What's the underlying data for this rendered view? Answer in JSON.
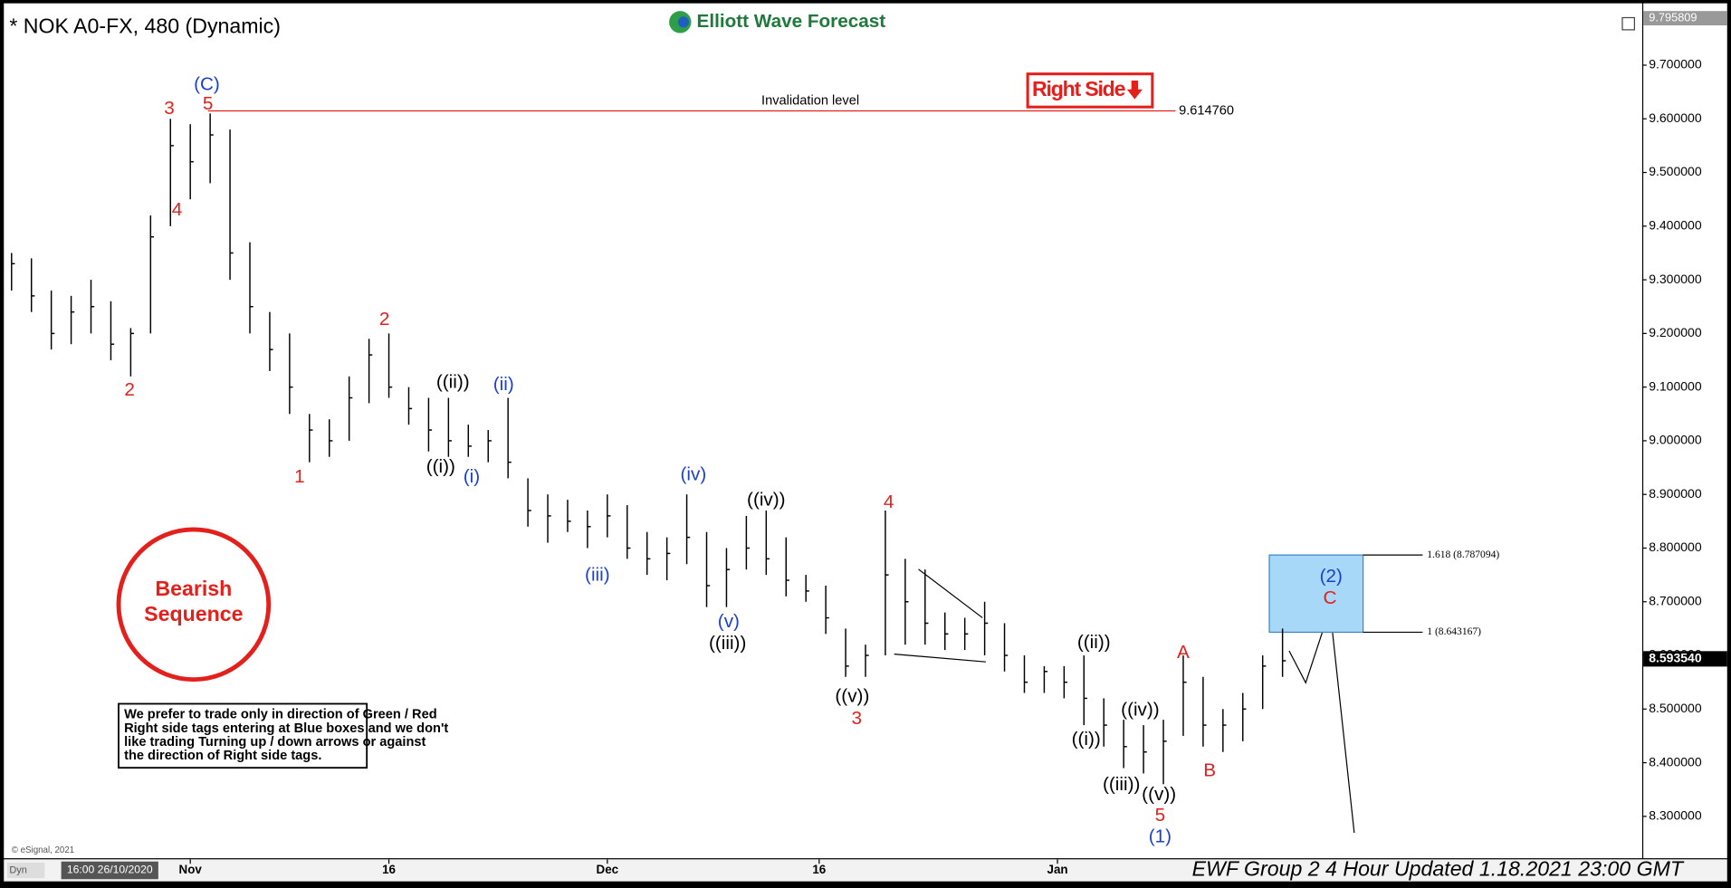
{
  "chart_data": {
    "type": "ohlc",
    "title": "* NOK A0-FX, 480 (Dynamic)",
    "logo": "Elliott Wave Forecast",
    "footer": "EWF Group 2 4 Hour Updated 1.18.2021 23:00 GMT",
    "copyright": "© eSignal, 2021",
    "mode_label": "Dyn",
    "start_label": "16:00 26/10/2020",
    "color": "#000000",
    "xlim": [
      -1.5,
      246
    ],
    "ylim": [
      8.222,
      9.805
    ],
    "xticks": [
      {
        "value": 27,
        "label": "Nov"
      },
      {
        "value": 57,
        "label": "16"
      },
      {
        "value": 90,
        "label": "Dec"
      },
      {
        "value": 122,
        "label": "16"
      },
      {
        "value": 158,
        "label": "Jan"
      }
    ],
    "yticks": [
      {
        "value": 8.3,
        "label": "8.300000"
      },
      {
        "value": 8.4,
        "label": "8.400000"
      },
      {
        "value": 8.5,
        "label": "8.500000"
      },
      {
        "value": 8.6,
        "label": "8.600000"
      },
      {
        "value": 8.7,
        "label": "8.700000"
      },
      {
        "value": 8.8,
        "label": "8.800000"
      },
      {
        "value": 8.9,
        "label": "8.900000"
      },
      {
        "value": 9,
        "label": "9.000000"
      },
      {
        "value": 9.1,
        "label": "9.100000"
      },
      {
        "value": 9.2,
        "label": "9.200000"
      },
      {
        "value": 9.3,
        "label": "9.300000"
      },
      {
        "value": 9.4,
        "label": "9.400000"
      },
      {
        "value": 9.5,
        "label": "9.500000"
      },
      {
        "value": 9.6,
        "label": "9.600000"
      },
      {
        "value": 9.7,
        "label": "9.700000"
      }
    ],
    "top_price": {
      "value": 9.795809,
      "label": "9.795809"
    },
    "current_price": {
      "value": 8.59354,
      "label": "8.593540"
    },
    "x": [
      0,
      3,
      6,
      9,
      12,
      15,
      18,
      21,
      24,
      27,
      30,
      33,
      36,
      39,
      42,
      45,
      48,
      51,
      54,
      57,
      60,
      63,
      66,
      69,
      72,
      75,
      78,
      81,
      84,
      87,
      90,
      93,
      96,
      99,
      102,
      105,
      108,
      111,
      114,
      117,
      120,
      123,
      126,
      129,
      132,
      135,
      138,
      141,
      144,
      147,
      150,
      153,
      156,
      159,
      162,
      165,
      168,
      171,
      174,
      177,
      180,
      183,
      186,
      189,
      192
    ],
    "high": [
      9.35,
      9.34,
      9.28,
      9.27,
      9.3,
      9.26,
      9.21,
      9.42,
      9.6,
      9.59,
      9.61,
      9.58,
      9.37,
      9.24,
      9.2,
      9.05,
      9.04,
      9.12,
      9.19,
      9.2,
      9.1,
      9.08,
      9.08,
      9.03,
      9.02,
      9.08,
      8.93,
      8.9,
      8.89,
      8.87,
      8.9,
      8.88,
      8.83,
      8.82,
      8.9,
      8.83,
      8.8,
      8.86,
      8.87,
      8.82,
      8.75,
      8.73,
      8.65,
      8.62,
      8.87,
      8.78,
      8.76,
      8.68,
      8.67,
      8.7,
      8.66,
      8.6,
      8.58,
      8.58,
      8.6,
      8.52,
      8.48,
      8.47,
      8.48,
      8.6,
      8.56,
      8.5,
      8.53,
      8.6,
      8.65
    ],
    "low": [
      9.28,
      9.24,
      9.17,
      9.18,
      9.2,
      9.15,
      9.12,
      9.2,
      9.4,
      9.45,
      9.48,
      9.3,
      9.2,
      9.13,
      9.05,
      8.96,
      8.97,
      9.0,
      9.07,
      9.08,
      9.03,
      8.98,
      8.97,
      8.97,
      8.96,
      8.93,
      8.84,
      8.81,
      8.83,
      8.8,
      8.82,
      8.78,
      8.75,
      8.74,
      8.77,
      8.69,
      8.69,
      8.76,
      8.75,
      8.71,
      8.7,
      8.64,
      8.56,
      8.56,
      8.6,
      8.62,
      8.62,
      8.61,
      8.61,
      8.6,
      8.57,
      8.53,
      8.53,
      8.52,
      8.47,
      8.43,
      8.39,
      8.38,
      8.36,
      8.45,
      8.43,
      8.42,
      8.44,
      8.5,
      8.56
    ],
    "close": [
      9.33,
      9.27,
      9.2,
      9.24,
      9.25,
      9.18,
      9.2,
      9.38,
      9.55,
      9.52,
      9.57,
      9.35,
      9.25,
      9.17,
      9.1,
      9.02,
      9.0,
      9.08,
      9.16,
      9.1,
      9.06,
      9.02,
      9.0,
      8.99,
      9.0,
      8.96,
      8.87,
      8.86,
      8.85,
      8.84,
      8.86,
      8.8,
      8.78,
      8.79,
      8.82,
      8.73,
      8.76,
      8.8,
      8.78,
      8.74,
      8.72,
      8.67,
      8.58,
      8.6,
      8.75,
      8.7,
      8.66,
      8.64,
      8.64,
      8.66,
      8.6,
      8.55,
      8.57,
      8.55,
      8.52,
      8.47,
      8.43,
      8.42,
      8.44,
      8.55,
      8.47,
      8.47,
      8.5,
      8.58,
      8.59
    ],
    "invalidation": {
      "value": 9.61476,
      "label": "9.614760",
      "text": "Invalidation level"
    },
    "fib_levels": [
      {
        "value": 8.787094,
        "label": "1.618 (8.787094)"
      },
      {
        "value": 8.643167,
        "label": "1 (8.643167)"
      }
    ],
    "right_side_tag": "Right Side",
    "bearish_label": [
      "Bearish",
      "Sequence"
    ],
    "note": [
      "We prefer to trade only in direction of Green / Red",
      "Right side tags entering at Blue boxes and we don't",
      "like trading Turning up / down arrows or against",
      "the direction of Right side tags."
    ],
    "annotations": [
      {
        "text": "3",
        "color": "#e3201b"
      },
      {
        "text": "5",
        "color": "#e3201b"
      },
      {
        "text": "4",
        "color": "#e3201b"
      },
      {
        "text": "2",
        "color": "#e3201b"
      },
      {
        "text": "1",
        "color": "#e3201b"
      },
      {
        "text": "2",
        "color": "#e3201b"
      },
      {
        "text": "4",
        "color": "#e3201b"
      },
      {
        "text": "3",
        "color": "#e3201b"
      },
      {
        "text": "5",
        "color": "#e3201b"
      },
      {
        "text": "A",
        "color": "#e3201b"
      },
      {
        "text": "B",
        "color": "#e3201b"
      },
      {
        "text": "C",
        "color": "#e3201b"
      },
      {
        "text": "(C)",
        "color": "#1c3fd0"
      },
      {
        "text": "(ii)",
        "color": "#1c3fd0"
      },
      {
        "text": "(i)",
        "color": "#1c3fd0"
      },
      {
        "text": "(iii)",
        "color": "#1c3fd0"
      },
      {
        "text": "(iv)",
        "color": "#1c3fd0"
      },
      {
        "text": "(v)",
        "color": "#1c3fd0"
      },
      {
        "text": "(1)",
        "color": "#1c3fd0"
      },
      {
        "text": "(2)",
        "color": "#1c3fd0"
      },
      {
        "text": "((ii))",
        "color": "#000000"
      },
      {
        "text": "((i))",
        "color": "#000000"
      },
      {
        "text": "((iv))",
        "color": "#000000"
      },
      {
        "text": "((iii))",
        "color": "#000000"
      },
      {
        "text": "((v))",
        "color": "#000000"
      },
      {
        "text": "((ii))",
        "color": "#000000"
      },
      {
        "text": "((i))",
        "color": "#000000"
      },
      {
        "text": "((iv))",
        "color": "#000000"
      },
      {
        "text": "((iii))",
        "color": "#000000"
      },
      {
        "text": "((v))",
        "color": "#000000"
      }
    ]
  }
}
